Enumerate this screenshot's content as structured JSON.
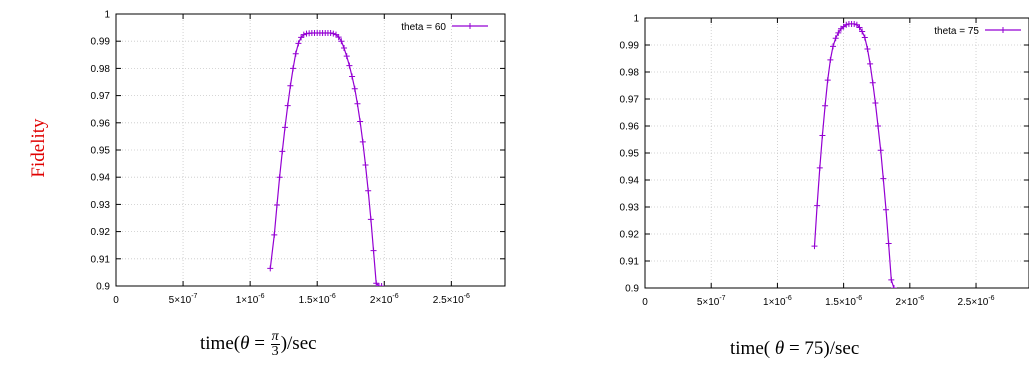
{
  "ylabel": "Fidelity",
  "colors": {
    "series": "#9400d3",
    "ylabel": "#e00000",
    "grid": "#c8c8c8"
  },
  "charts": [
    {
      "xlabel": {
        "prefix": "time(",
        "var": "θ",
        "eq": " = ",
        "frac_num": "π",
        "frac_den": "3",
        "suffix": ")/sec"
      }
    },
    {
      "xlabel": {
        "prefix": "time( ",
        "var": "θ",
        "eq": " = 75)/sec"
      }
    }
  ],
  "chart_data": [
    {
      "type": "line",
      "title": "",
      "ylabel": "Fidelity",
      "xlim": [
        0,
        2.9e-06
      ],
      "ylim": [
        0.9,
        1.0
      ],
      "grid": true,
      "legend": "top-right",
      "x_ticks": [
        0,
        5e-07,
        1e-06,
        1.5e-06,
        2e-06,
        2.5e-06
      ],
      "x_tick_labels": [
        {
          "base": "0",
          "exp": ""
        },
        {
          "base": "5×10",
          "exp": "-7"
        },
        {
          "base": "1×10",
          "exp": "-6"
        },
        {
          "base": "1.5×10",
          "exp": "-6"
        },
        {
          "base": "2×10",
          "exp": "-6"
        },
        {
          "base": "2.5×10",
          "exp": "-6"
        }
      ],
      "y_ticks": [
        0.9,
        0.91,
        0.92,
        0.93,
        0.94,
        0.95,
        0.96,
        0.97,
        0.98,
        0.99,
        1
      ],
      "y_tick_labels": [
        "0.9",
        "0.91",
        "0.92",
        "0.93",
        "0.94",
        "0.95",
        "0.96",
        "0.97",
        "0.98",
        "0.99",
        "1"
      ],
      "series": [
        {
          "name": "theta = 60",
          "x": [
            1.15e-06,
            1.18e-06,
            1.2e-06,
            1.22e-06,
            1.24e-06,
            1.26e-06,
            1.28e-06,
            1.3e-06,
            1.32e-06,
            1.34e-06,
            1.36e-06,
            1.38e-06,
            1.4e-06,
            1.42e-06,
            1.44e-06,
            1.46e-06,
            1.48e-06,
            1.5e-06,
            1.52e-06,
            1.54e-06,
            1.56e-06,
            1.58e-06,
            1.6e-06,
            1.62e-06,
            1.64e-06,
            1.66e-06,
            1.68e-06,
            1.7e-06,
            1.72e-06,
            1.74e-06,
            1.76e-06,
            1.78e-06,
            1.8e-06,
            1.82e-06,
            1.84e-06,
            1.86e-06,
            1.88e-06,
            1.9e-06,
            1.92e-06,
            1.94e-06,
            1.96e-06,
            1.98e-06
          ],
          "y": [
            0.9065,
            0.9188,
            0.9298,
            0.94,
            0.9495,
            0.9583,
            0.9663,
            0.9736,
            0.98,
            0.9854,
            0.9892,
            0.9914,
            0.9924,
            0.9928,
            0.9929,
            0.993,
            0.993,
            0.993,
            0.993,
            0.993,
            0.993,
            0.993,
            0.993,
            0.9928,
            0.9924,
            0.9915,
            0.99,
            0.9875,
            0.9845,
            0.981,
            0.977,
            0.9725,
            0.967,
            0.9605,
            0.953,
            0.9445,
            0.935,
            0.9245,
            0.913,
            0.901,
            0.9,
            0.9
          ]
        }
      ]
    },
    {
      "type": "line",
      "title": "",
      "ylabel": "",
      "xlim": [
        0,
        2.9e-06
      ],
      "ylim": [
        0.9,
        1.0
      ],
      "grid": true,
      "legend": "top-right",
      "x_ticks": [
        0,
        5e-07,
        1e-06,
        1.5e-06,
        2e-06,
        2.5e-06
      ],
      "x_tick_labels": [
        {
          "base": "0",
          "exp": ""
        },
        {
          "base": "5×10",
          "exp": "-7"
        },
        {
          "base": "1×10",
          "exp": "-6"
        },
        {
          "base": "1.5×10",
          "exp": "-6"
        },
        {
          "base": "2×10",
          "exp": "-6"
        },
        {
          "base": "2.5×10",
          "exp": "-6"
        }
      ],
      "y_ticks": [
        0.9,
        0.91,
        0.92,
        0.93,
        0.94,
        0.95,
        0.96,
        0.97,
        0.98,
        0.99,
        1
      ],
      "y_tick_labels": [
        "0.9",
        "0.91",
        "0.92",
        "0.93",
        "0.94",
        "0.95",
        "0.96",
        "0.97",
        "0.98",
        "0.99",
        "1"
      ],
      "series": [
        {
          "name": "theta = 75",
          "x": [
            1.28e-06,
            1.3e-06,
            1.32e-06,
            1.34e-06,
            1.36e-06,
            1.38e-06,
            1.4e-06,
            1.42e-06,
            1.44e-06,
            1.46e-06,
            1.48e-06,
            1.5e-06,
            1.52e-06,
            1.54e-06,
            1.56e-06,
            1.58e-06,
            1.6e-06,
            1.62e-06,
            1.64e-06,
            1.66e-06,
            1.68e-06,
            1.7e-06,
            1.72e-06,
            1.74e-06,
            1.76e-06,
            1.78e-06,
            1.8e-06,
            1.82e-06,
            1.84e-06,
            1.86e-06,
            1.88e-06
          ],
          "y": [
            0.9155,
            0.9305,
            0.9445,
            0.9565,
            0.9675,
            0.977,
            0.9845,
            0.9895,
            0.9925,
            0.9945,
            0.996,
            0.9968,
            0.9975,
            0.9978,
            0.9978,
            0.9978,
            0.9975,
            0.9965,
            0.995,
            0.9928,
            0.9885,
            0.983,
            0.976,
            0.9685,
            0.96,
            0.951,
            0.9405,
            0.929,
            0.9165,
            0.903,
            0.9
          ]
        }
      ]
    }
  ]
}
